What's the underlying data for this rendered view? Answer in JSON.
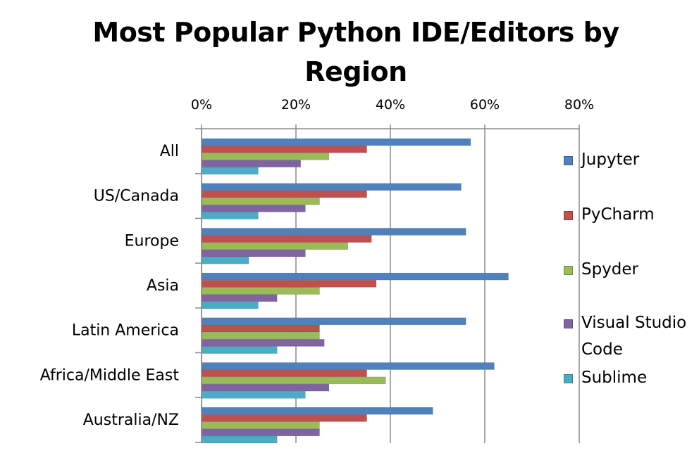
{
  "chart_data": {
    "type": "bar",
    "orientation": "horizontal",
    "title": "Most Popular Python IDE/Editors by\nRegion",
    "x_axis_position": "top",
    "xlim": [
      0,
      80
    ],
    "x_ticks": [
      "0%",
      "20%",
      "40%",
      "60%",
      "80%"
    ],
    "x_tick_values": [
      0,
      20,
      40,
      60,
      80
    ],
    "vertical_gridlines": true,
    "legend_position": "right",
    "categories": [
      "All",
      "US/Canada",
      "Europe",
      "Asia",
      "Latin America",
      "Africa/Middle East",
      "Australia/NZ"
    ],
    "series": [
      {
        "name": "Jupyter",
        "color": "#4f81bd",
        "values": [
          57,
          55,
          56,
          65,
          56,
          62,
          49
        ]
      },
      {
        "name": "PyCharm",
        "color": "#c0504d",
        "values": [
          35,
          35,
          36,
          37,
          25,
          35,
          35
        ]
      },
      {
        "name": "Spyder",
        "color": "#9bbb59",
        "values": [
          27,
          25,
          31,
          25,
          25,
          39,
          25
        ]
      },
      {
        "name": "Visual Studio Code",
        "color": "#8064a2",
        "values": [
          21,
          22,
          22,
          16,
          26,
          27,
          25
        ]
      },
      {
        "name": "Sublime",
        "color": "#4bacc6",
        "values": [
          12,
          12,
          10,
          12,
          16,
          22,
          16
        ]
      }
    ]
  }
}
